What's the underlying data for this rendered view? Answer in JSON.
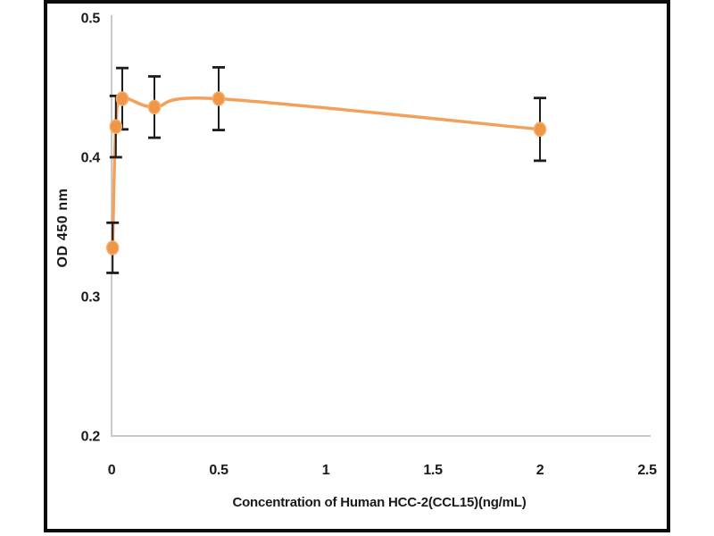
{
  "figure": {
    "background": "#ffffff",
    "frame_color": "#0b0b0b"
  },
  "chart_data": {
    "type": "line",
    "title": "",
    "xlabel": "Concentration of Human HCC-2(CCL15)(ng/mL)",
    "ylabel": "OD 450 nm",
    "x": [
      0.005,
      0.02,
      0.05,
      0.2,
      0.5,
      2
    ],
    "y": [
      0.335,
      0.422,
      0.442,
      0.436,
      0.442,
      0.42
    ],
    "y_error": [
      0.018,
      0.022,
      0.022,
      0.022,
      0.0225,
      0.0225
    ],
    "xlim": [
      0,
      2.5
    ],
    "ylim": [
      0.2,
      0.5
    ],
    "xticks": [
      0,
      0.5,
      1,
      1.5,
      2,
      2.5
    ],
    "xtick_labels": [
      "0",
      "0.5",
      "1",
      "1.5",
      "2",
      "2.5"
    ],
    "yticks": [
      0.2,
      0.3,
      0.4,
      0.5
    ],
    "ytick_labels": [
      "0.2",
      "0.3",
      "0.4",
      "0.5"
    ],
    "grid": false,
    "legend": null,
    "smooth": true,
    "marker": "circle",
    "colors": {
      "line": "#F2A05A",
      "marker": "#EF9647",
      "marker_edge": "#F5AE6E",
      "error_bar": "#1C1C1C",
      "axis_line": "#C9C9C9",
      "tick_text": "#1A1A1A"
    }
  }
}
